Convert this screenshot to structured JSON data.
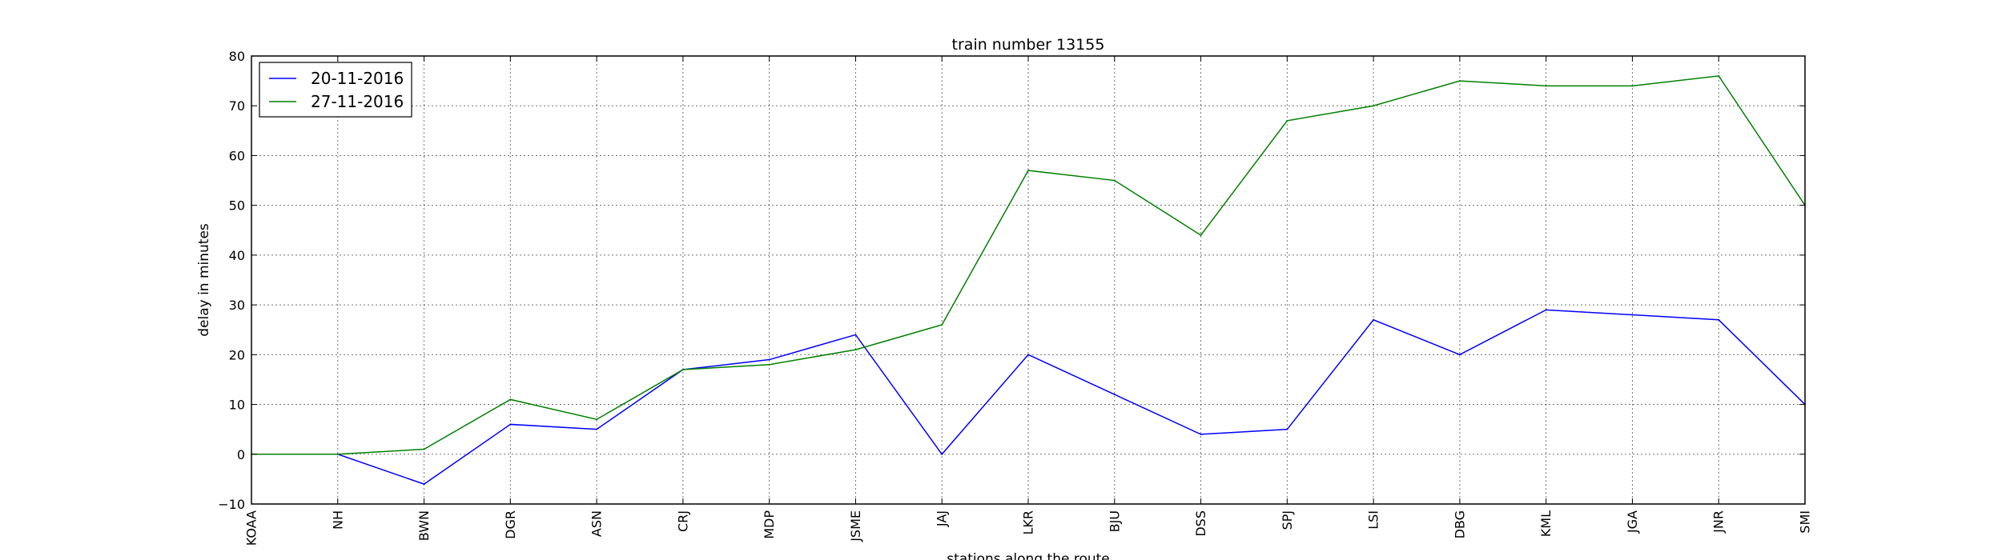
{
  "chart_data": {
    "type": "line",
    "title": "train number 13155",
    "xlabel": "stations along the route",
    "ylabel": "delay in minutes",
    "categories": [
      "KOAA",
      "NH",
      "BWN",
      "DGR",
      "ASN",
      "CRJ",
      "MDP",
      "JSME",
      "JAJ",
      "LKR",
      "BJU",
      "DSS",
      "SPJ",
      "LSI",
      "DBG",
      "KML",
      "JGA",
      "JNR",
      "SMI"
    ],
    "ylim": [
      -10,
      80
    ],
    "yticks": [
      -10,
      0,
      10,
      20,
      30,
      40,
      50,
      60,
      70,
      80
    ],
    "ytick_labels": [
      "−10",
      "0",
      "10",
      "20",
      "30",
      "40",
      "50",
      "60",
      "70",
      "80"
    ],
    "grid": true,
    "legend_position": "top-left",
    "series": [
      {
        "name": "20-11-2016",
        "color": "#0000ff",
        "values": [
          0,
          0,
          -6,
          6,
          5,
          17,
          19,
          24,
          0,
          20,
          12,
          4,
          5,
          27,
          20,
          29,
          28,
          27,
          10
        ]
      },
      {
        "name": "27-11-2016",
        "color": "#008000",
        "values": [
          0,
          0,
          1,
          11,
          7,
          17,
          18,
          21,
          26,
          57,
          55,
          44,
          67,
          70,
          75,
          74,
          74,
          76,
          50
        ]
      }
    ]
  }
}
